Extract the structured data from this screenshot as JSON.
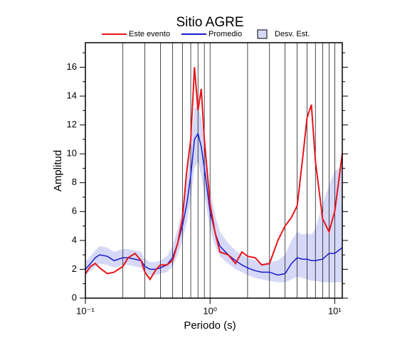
{
  "chart_data": {
    "type": "line",
    "title": "Sitio AGRE",
    "x_label": "Periodo (s)",
    "y_label": "Amplitud",
    "xscale": "log",
    "xlim": [
      0.1,
      11.5
    ],
    "ylim": [
      0,
      17.7
    ],
    "xticks": [
      {
        "value": 0.1,
        "label": "10⁻¹"
      },
      {
        "value": 1,
        "label": "10⁰"
      },
      {
        "value": 10,
        "label": "10¹"
      }
    ],
    "x_grid_ticks": [
      0.2,
      0.3,
      0.4,
      0.5,
      0.6,
      0.7,
      0.8,
      0.9,
      2,
      3,
      4,
      5,
      6,
      7,
      8,
      9
    ],
    "yticks": [
      0,
      2,
      4,
      6,
      8,
      10,
      12,
      14,
      16
    ],
    "y_minor_ticks": [
      1,
      3,
      5,
      7,
      9,
      11,
      13,
      15,
      17
    ],
    "grid": true,
    "x": [
      0.1,
      0.11,
      0.12,
      0.13,
      0.15,
      0.17,
      0.2,
      0.22,
      0.25,
      0.28,
      0.3,
      0.33,
      0.37,
      0.4,
      0.45,
      0.5,
      0.55,
      0.6,
      0.65,
      0.7,
      0.75,
      0.8,
      0.85,
      0.9,
      1.0,
      1.1,
      1.2,
      1.4,
      1.6,
      1.8,
      2.0,
      2.3,
      2.6,
      3.0,
      3.5,
      4.0,
      4.5,
      5.0,
      5.5,
      6.0,
      6.5,
      7.0,
      8.0,
      9.0,
      10,
      11.5
    ],
    "band": {
      "name": "Desv. Est.",
      "color": "#d5d8f7",
      "lower": [
        1.6,
        1.9,
        2.2,
        2.4,
        2.3,
        2.1,
        2.3,
        2.3,
        2.2,
        2.1,
        1.8,
        1.6,
        1.6,
        1.7,
        1.8,
        2.2,
        3.0,
        4.0,
        5.2,
        6.8,
        9.0,
        9.5,
        8.5,
        7.2,
        4.8,
        3.6,
        2.9,
        2.4,
        2.0,
        1.8,
        1.6,
        1.4,
        1.3,
        1.2,
        1.1,
        1.1,
        1.3,
        1.5,
        1.4,
        1.3,
        1.2,
        1.2,
        1.1,
        1.1,
        1.1,
        1.1
      ],
      "upper": [
        2.5,
        2.9,
        3.3,
        3.6,
        3.5,
        3.2,
        3.4,
        3.4,
        3.3,
        3.2,
        2.7,
        2.5,
        2.5,
        2.6,
        2.9,
        3.6,
        4.8,
        6.2,
        8.0,
        10.5,
        13.2,
        13.3,
        12.5,
        10.8,
        7.5,
        5.7,
        4.6,
        3.8,
        3.3,
        3.0,
        2.8,
        2.6,
        2.4,
        2.5,
        2.6,
        3.0,
        4.0,
        4.6,
        4.4,
        4.5,
        4.4,
        4.8,
        6.5,
        7.8,
        8.8,
        9.2
      ]
    },
    "series": [
      {
        "name": "Este evento",
        "color": "#e8141a",
        "values": [
          1.7,
          2.2,
          2.4,
          2.1,
          1.7,
          1.8,
          2.2,
          2.8,
          3.1,
          2.6,
          1.8,
          1.3,
          2.0,
          2.3,
          2.3,
          2.6,
          3.8,
          5.5,
          8.8,
          11,
          16,
          13,
          14.5,
          11,
          6.5,
          4.5,
          3.2,
          3.0,
          2.4,
          3.2,
          2.9,
          2.8,
          2.3,
          2.4,
          4.0,
          5.0,
          5.6,
          6.4,
          9.5,
          12.5,
          13.4,
          9.5,
          5.5,
          4.6,
          6.0,
          10.0
        ]
      },
      {
        "name": "Promedio",
        "color": "#1a1ad0",
        "values": [
          2.0,
          2.4,
          2.8,
          3.0,
          2.9,
          2.6,
          2.8,
          2.8,
          2.7,
          2.6,
          2.2,
          2.0,
          2.0,
          2.1,
          2.3,
          2.8,
          3.8,
          5.0,
          6.5,
          8.5,
          11.0,
          11.4,
          10.5,
          9.0,
          6.0,
          4.5,
          3.6,
          3.0,
          2.6,
          2.3,
          2.1,
          1.9,
          1.8,
          1.8,
          1.6,
          1.7,
          2.4,
          2.8,
          2.7,
          2.7,
          2.6,
          2.6,
          2.7,
          3.1,
          3.1,
          3.5
        ]
      }
    ]
  }
}
